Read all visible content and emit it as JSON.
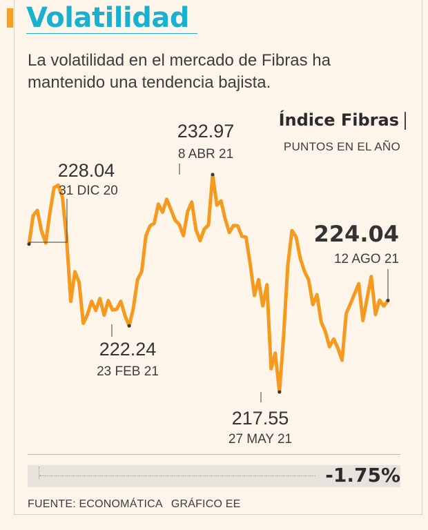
{
  "header": {
    "title": "Volatilidad",
    "subtitle": "La volatilidad en el mercado de Fibras ha mantenido una tendencia bajista."
  },
  "chart_data": {
    "type": "line",
    "title": "Índice Fibras",
    "unit_label": "PUNTOS EN EL AÑO",
    "color": "#f59a1f",
    "series": [
      {
        "values": [
          228.04,
          230.06,
          230.43,
          228.98,
          228.12,
          230.25,
          232.04,
          232.22,
          231.38,
          228.49,
          223.98,
          226.08,
          225.33,
          222.42,
          223.05,
          223.98,
          223.33,
          224.18,
          223.0,
          224.03,
          223.37,
          223.42,
          223.98,
          222.96,
          222.24,
          223.51,
          225.52,
          226.1,
          228.62,
          229.34,
          229.52,
          230.88,
          230.3,
          231.22,
          230.49,
          229.75,
          229.43,
          228.64,
          230.36,
          231.02,
          229.06,
          228.29,
          229.11,
          229.4,
          232.97,
          230.81,
          231.11,
          229.82,
          228.87,
          229.36,
          229.34,
          228.6,
          228.53,
          226.61,
          224.4,
          225.52,
          223.66,
          225.15,
          219.2,
          220.3,
          217.55,
          221.5,
          226.52,
          229.0,
          228.54,
          227.02,
          226.11,
          225.5,
          223.75,
          224.45,
          222.52,
          221.83,
          220.76,
          221.31,
          220.67,
          219.8,
          223.12,
          223.8,
          224.52,
          225.23,
          222.62,
          224.2,
          225.74,
          223.05,
          224.06,
          223.65,
          224.04
        ]
      }
    ],
    "annotations": [
      {
        "value": "228.04",
        "date": "31 DIC 20"
      },
      {
        "value": "222.24",
        "date": "23 FEB 21"
      },
      {
        "value": "232.97",
        "date": "8 ABR 21"
      },
      {
        "value": "217.55",
        "date": "27 MAY 21"
      },
      {
        "value": "224.04",
        "date": "12 AGO 21"
      }
    ]
  },
  "change": {
    "value": "-1.75%"
  },
  "footer": {
    "source": "FUENTE: ECONOMÁTICA",
    "credit": "GRÁFICO EE"
  }
}
